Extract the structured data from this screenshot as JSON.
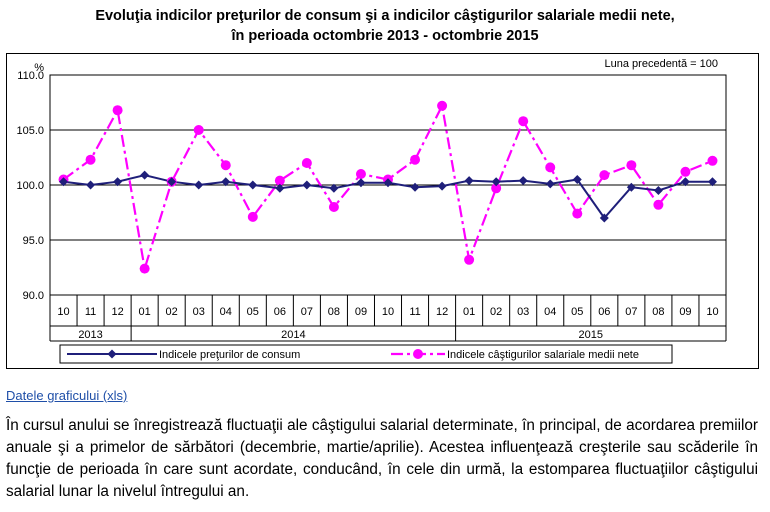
{
  "title_line1": "Evoluţia indicilor preţurilor de consum şi a indicilor câştigurilor salariale medii nete,",
  "title_line2": "în perioada octombrie 2013 - octombrie 2015",
  "link_text": "Datele graficului (xls)",
  "paragraph": "În cursul anului se înregistrează fluctuaţii ale câştigului salarial determinate, în principal, de acordarea premiilor anuale şi a primelor de sărbători (decembrie, martie/aprilie). Acestea influenţează creşterile sau scăderile în funcţie de perioada în care sunt acordate, conducând, în cele din urmă, la estomparea fluctuaţiilor câştigului salarial lunar la nivelul întregului an.",
  "colors": {
    "series1": "#1f1f7a",
    "series2": "#ff00ff",
    "link": "#1f4fa8"
  },
  "chart_data": {
    "type": "line",
    "y_unit": "%",
    "note": "Luna precedentă = 100",
    "ylim": [
      90,
      110
    ],
    "yticks": [
      "90.0",
      "95.0",
      "100.0",
      "105.0",
      "110.0"
    ],
    "grid": true,
    "legend_position": "bottom",
    "categories": [
      "10",
      "11",
      "12",
      "01",
      "02",
      "03",
      "04",
      "05",
      "06",
      "07",
      "08",
      "09",
      "10",
      "11",
      "12",
      "01",
      "02",
      "03",
      "04",
      "05",
      "06",
      "07",
      "08",
      "09",
      "10"
    ],
    "years": [
      {
        "label": "2013",
        "from": 0,
        "to": 2
      },
      {
        "label": "2014",
        "from": 3,
        "to": 14
      },
      {
        "label": "2015",
        "from": 15,
        "to": 24
      }
    ],
    "series": [
      {
        "name": "Indicele preţurilor de consum",
        "values": [
          100.3,
          100.0,
          100.3,
          100.9,
          100.3,
          100.0,
          100.3,
          100.0,
          99.7,
          100.0,
          99.7,
          100.2,
          100.2,
          99.8,
          99.9,
          100.4,
          100.3,
          100.4,
          100.1,
          100.5,
          97.0,
          99.8,
          99.5,
          100.3,
          100.3
        ]
      },
      {
        "name": "Indicele câştigurilor salariale medii nete",
        "values": [
          100.5,
          102.3,
          106.8,
          92.4,
          100.3,
          105.0,
          101.8,
          97.1,
          100.4,
          102.0,
          98.0,
          101.0,
          100.5,
          102.3,
          107.2,
          93.2,
          99.7,
          105.8,
          101.6,
          97.4,
          100.9,
          101.8,
          98.2,
          101.2,
          102.2
        ]
      }
    ]
  }
}
